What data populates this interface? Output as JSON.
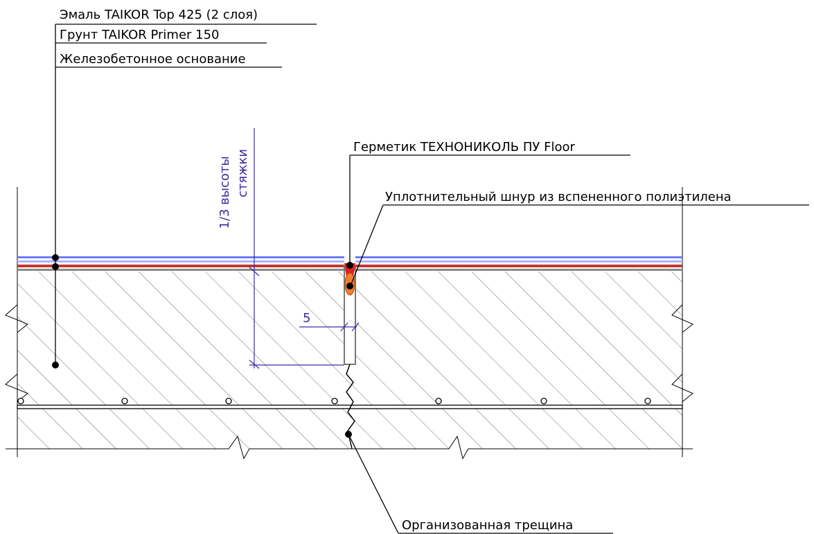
{
  "labels": {
    "enamel": "Эмаль TAIKOR Top 425 (2 слоя)",
    "primer": "Грунт TAIKOR Primer 150",
    "base": "Железобетонное основание",
    "sealant": "Герметик ТЕХНОНИКОЛЬ ПУ Floor",
    "cord": "Уплотнительный шнур из вспененного полиэтилена",
    "crack": "Организованная трещина"
  },
  "dimensions": {
    "depth_line1": "1/3 высоты",
    "depth_line2": "стяжки",
    "width": "5"
  }
}
